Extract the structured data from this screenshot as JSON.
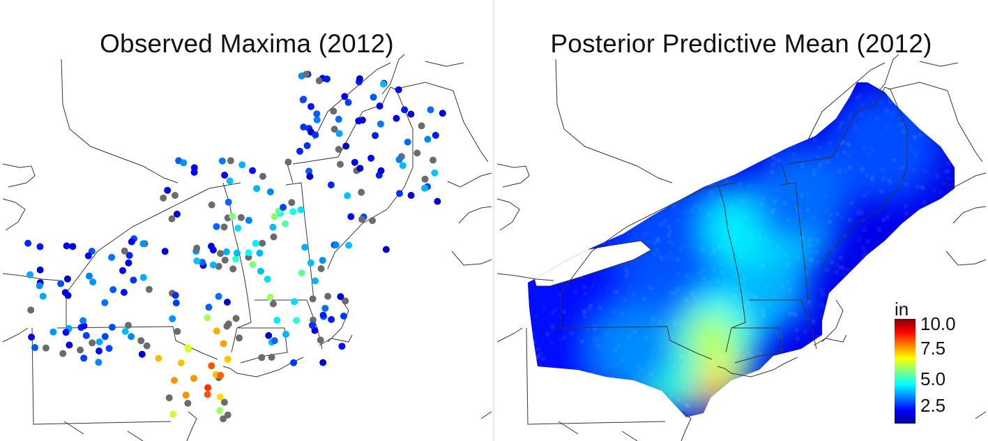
{
  "left_panel": {
    "title": "Observed Maxima (2012)"
  },
  "right_panel": {
    "title": "Posterior Predictive Mean (2012)"
  },
  "colorbar": {
    "unit": "in",
    "ticks": [
      "10.0",
      "7.5",
      "5.0",
      "2.5"
    ],
    "range": [
      0,
      10.0
    ],
    "colors": [
      "#00008f",
      "#0000ff",
      "#0080ff",
      "#00ffff",
      "#80ff80",
      "#ffff00",
      "#ff8000",
      "#ff0000",
      "#800000"
    ]
  },
  "missing_color": "#6b6b6b"
}
